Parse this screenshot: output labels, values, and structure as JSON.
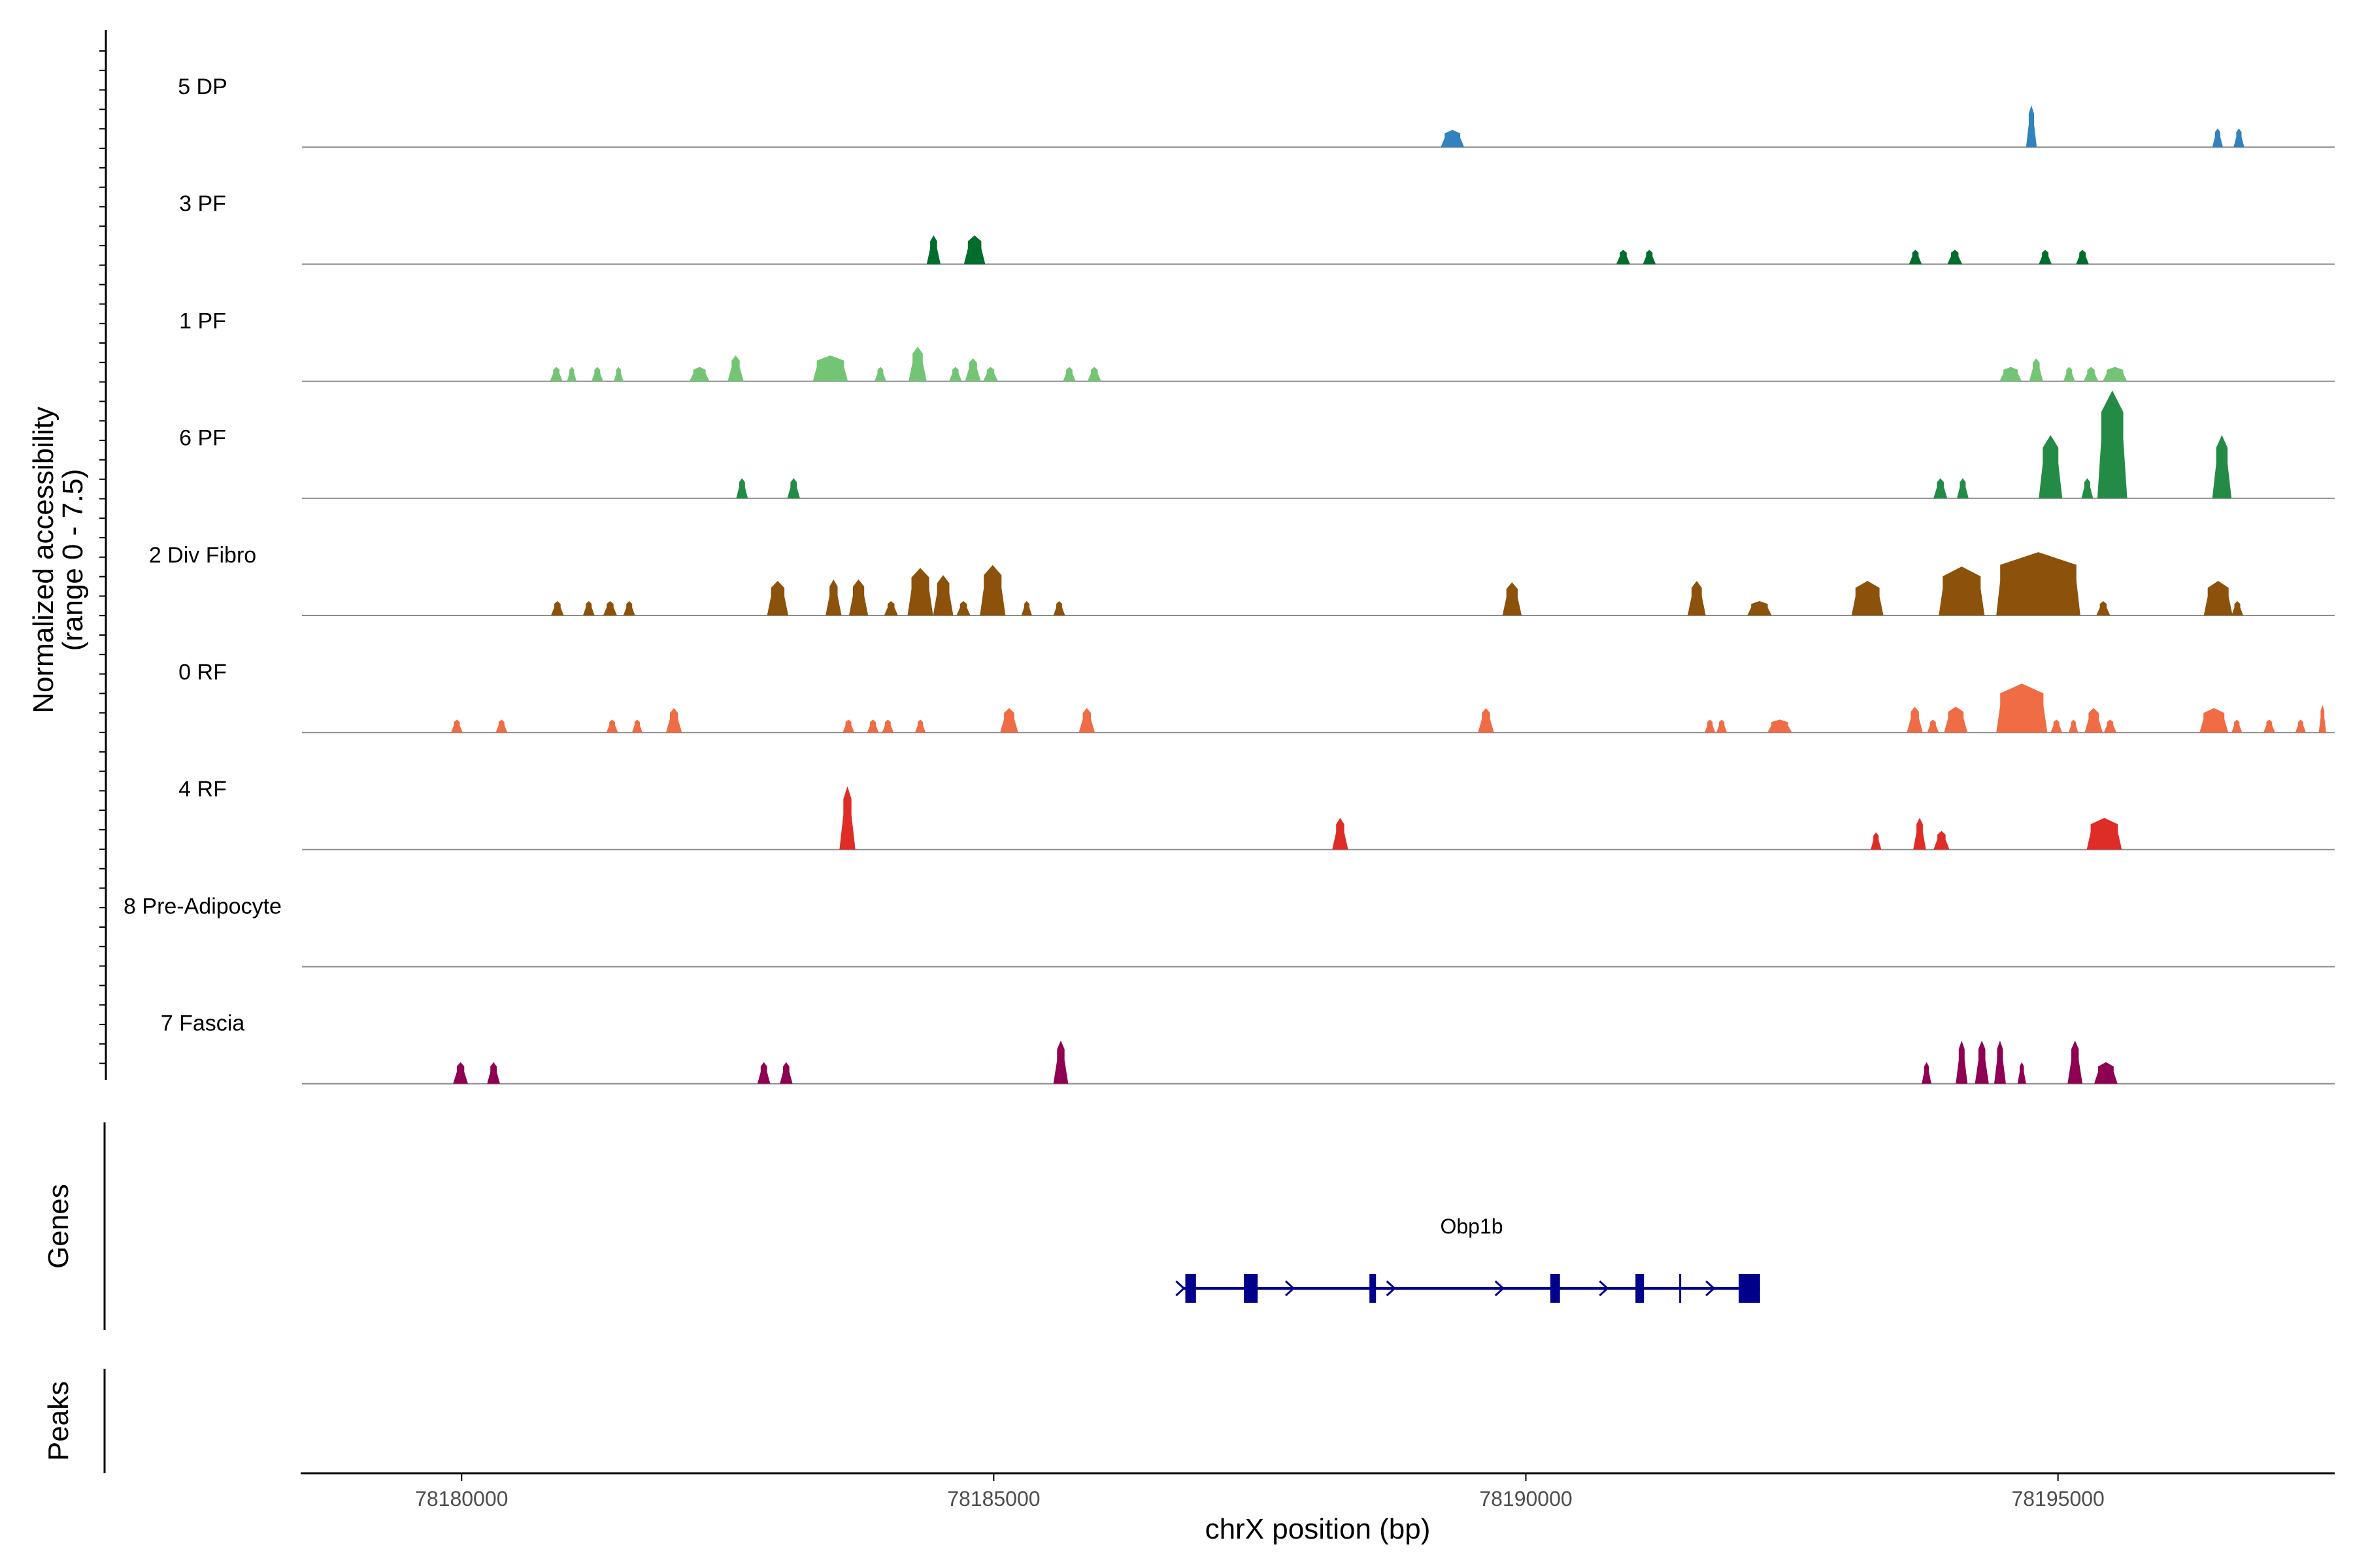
{
  "chart_data": {
    "type": "area",
    "chromosome": "chrX",
    "xlim": [
      78178500,
      78197600
    ],
    "x_ticks": [
      78180000,
      78185000,
      78190000,
      78195000
    ],
    "x_tick_labels": [
      "78180000",
      "78185000",
      "78190000",
      "78195000"
    ],
    "xlabel": "chrX position (bp)",
    "ylabel_line1": "Normalized accessibility",
    "ylabel_line2": "(range 0 - 7.5)",
    "ylim": [
      0,
      7.5
    ],
    "panel_labels": {
      "genes": "Genes",
      "peaks": "Peaks"
    },
    "tracks": [
      {
        "name": "5 DP",
        "color": "#3182bd",
        "peaks": [
          {
            "start": 78189200,
            "end": 78189420,
            "h": 1.2
          },
          {
            "start": 78194700,
            "end": 78194800,
            "h": 2.9
          },
          {
            "start": 78196450,
            "end": 78196550,
            "h": 1.3
          },
          {
            "start": 78196650,
            "end": 78196750,
            "h": 1.3
          }
        ]
      },
      {
        "name": "3 PF",
        "color": "#006d2c",
        "peaks": [
          {
            "start": 78184370,
            "end": 78184500,
            "h": 2.0
          },
          {
            "start": 78184720,
            "end": 78184920,
            "h": 2.0
          },
          {
            "start": 78190850,
            "end": 78190980,
            "h": 1.0
          },
          {
            "start": 78191100,
            "end": 78191220,
            "h": 1.0
          },
          {
            "start": 78193600,
            "end": 78193720,
            "h": 1.0
          },
          {
            "start": 78193960,
            "end": 78194100,
            "h": 1.0
          },
          {
            "start": 78194820,
            "end": 78194940,
            "h": 1.0
          },
          {
            "start": 78195170,
            "end": 78195290,
            "h": 1.0
          }
        ]
      },
      {
        "name": "1 PF",
        "color": "#74c476",
        "peaks": [
          {
            "start": 78180830,
            "end": 78180950,
            "h": 1.0
          },
          {
            "start": 78180990,
            "end": 78181080,
            "h": 1.0
          },
          {
            "start": 78181220,
            "end": 78181330,
            "h": 1.0
          },
          {
            "start": 78181430,
            "end": 78181520,
            "h": 1.0
          },
          {
            "start": 78182140,
            "end": 78182330,
            "h": 1.0
          },
          {
            "start": 78182500,
            "end": 78182650,
            "h": 1.8
          },
          {
            "start": 78183300,
            "end": 78183630,
            "h": 1.8
          },
          {
            "start": 78183880,
            "end": 78183990,
            "h": 1.0
          },
          {
            "start": 78184200,
            "end": 78184370,
            "h": 2.4
          },
          {
            "start": 78184580,
            "end": 78184700,
            "h": 1.0
          },
          {
            "start": 78184730,
            "end": 78184880,
            "h": 1.6
          },
          {
            "start": 78184900,
            "end": 78185040,
            "h": 1.0
          },
          {
            "start": 78185650,
            "end": 78185770,
            "h": 1.0
          },
          {
            "start": 78185880,
            "end": 78186010,
            "h": 1.0
          },
          {
            "start": 78194450,
            "end": 78194660,
            "h": 1.0
          },
          {
            "start": 78194730,
            "end": 78194860,
            "h": 1.6
          },
          {
            "start": 78195050,
            "end": 78195160,
            "h": 1.0
          },
          {
            "start": 78195240,
            "end": 78195380,
            "h": 1.0
          },
          {
            "start": 78195420,
            "end": 78195650,
            "h": 1.0
          }
        ]
      },
      {
        "name": "6 PF",
        "color": "#238b45",
        "peaks": [
          {
            "start": 78182580,
            "end": 78182690,
            "h": 1.4
          },
          {
            "start": 78183060,
            "end": 78183180,
            "h": 1.4
          },
          {
            "start": 78193830,
            "end": 78193960,
            "h": 1.4
          },
          {
            "start": 78194050,
            "end": 78194160,
            "h": 1.4
          },
          {
            "start": 78194820,
            "end": 78195040,
            "h": 4.4
          },
          {
            "start": 78195220,
            "end": 78195330,
            "h": 1.4
          },
          {
            "start": 78195370,
            "end": 78195650,
            "h": 7.5
          },
          {
            "start": 78196450,
            "end": 78196630,
            "h": 4.4
          }
        ]
      },
      {
        "name": "2 Div Fibro",
        "color": "#8c510a",
        "peaks": [
          {
            "start": 78180840,
            "end": 78180960,
            "h": 1.0
          },
          {
            "start": 78181140,
            "end": 78181250,
            "h": 1.0
          },
          {
            "start": 78181330,
            "end": 78181460,
            "h": 1.0
          },
          {
            "start": 78181520,
            "end": 78181630,
            "h": 1.0
          },
          {
            "start": 78182870,
            "end": 78183070,
            "h": 2.4
          },
          {
            "start": 78183420,
            "end": 78183570,
            "h": 2.5
          },
          {
            "start": 78183640,
            "end": 78183820,
            "h": 2.5
          },
          {
            "start": 78183970,
            "end": 78184100,
            "h": 1.0
          },
          {
            "start": 78184190,
            "end": 78184430,
            "h": 3.3
          },
          {
            "start": 78184430,
            "end": 78184620,
            "h": 2.8
          },
          {
            "start": 78184650,
            "end": 78184780,
            "h": 1.0
          },
          {
            "start": 78184870,
            "end": 78185110,
            "h": 3.5
          },
          {
            "start": 78185260,
            "end": 78185360,
            "h": 1.0
          },
          {
            "start": 78185560,
            "end": 78185670,
            "h": 1.0
          },
          {
            "start": 78189780,
            "end": 78189960,
            "h": 2.3
          },
          {
            "start": 78191520,
            "end": 78191690,
            "h": 2.4
          },
          {
            "start": 78192080,
            "end": 78192310,
            "h": 1.0
          },
          {
            "start": 78193060,
            "end": 78193360,
            "h": 2.4
          },
          {
            "start": 78193880,
            "end": 78194310,
            "h": 3.4
          },
          {
            "start": 78194420,
            "end": 78195210,
            "h": 4.4
          },
          {
            "start": 78195360,
            "end": 78195490,
            "h": 1.0
          },
          {
            "start": 78196370,
            "end": 78196640,
            "h": 2.4
          },
          {
            "start": 78196630,
            "end": 78196740,
            "h": 1.0
          }
        ]
      },
      {
        "name": "0 RF",
        "color": "#ef6c45",
        "peaks": [
          {
            "start": 78179900,
            "end": 78180010,
            "h": 0.9
          },
          {
            "start": 78180320,
            "end": 78180430,
            "h": 0.9
          },
          {
            "start": 78181360,
            "end": 78181470,
            "h": 0.9
          },
          {
            "start": 78181600,
            "end": 78181700,
            "h": 0.9
          },
          {
            "start": 78181920,
            "end": 78182070,
            "h": 1.7
          },
          {
            "start": 78183580,
            "end": 78183690,
            "h": 0.9
          },
          {
            "start": 78183810,
            "end": 78183920,
            "h": 0.9
          },
          {
            "start": 78183950,
            "end": 78184060,
            "h": 0.9
          },
          {
            "start": 78184260,
            "end": 78184360,
            "h": 0.9
          },
          {
            "start": 78185060,
            "end": 78185230,
            "h": 1.7
          },
          {
            "start": 78185800,
            "end": 78185950,
            "h": 1.7
          },
          {
            "start": 78189550,
            "end": 78189700,
            "h": 1.7
          },
          {
            "start": 78191680,
            "end": 78191780,
            "h": 0.9
          },
          {
            "start": 78191790,
            "end": 78191890,
            "h": 0.9
          },
          {
            "start": 78192270,
            "end": 78192500,
            "h": 0.9
          },
          {
            "start": 78193580,
            "end": 78193730,
            "h": 1.8
          },
          {
            "start": 78193770,
            "end": 78193880,
            "h": 0.9
          },
          {
            "start": 78193930,
            "end": 78194150,
            "h": 1.8
          },
          {
            "start": 78194420,
            "end": 78194900,
            "h": 3.4
          },
          {
            "start": 78194930,
            "end": 78195040,
            "h": 0.9
          },
          {
            "start": 78195100,
            "end": 78195190,
            "h": 0.9
          },
          {
            "start": 78195250,
            "end": 78195420,
            "h": 1.7
          },
          {
            "start": 78195430,
            "end": 78195550,
            "h": 0.9
          },
          {
            "start": 78196330,
            "end": 78196600,
            "h": 1.7
          },
          {
            "start": 78196630,
            "end": 78196730,
            "h": 0.9
          },
          {
            "start": 78196930,
            "end": 78197040,
            "h": 0.9
          },
          {
            "start": 78197230,
            "end": 78197330,
            "h": 0.9
          },
          {
            "start": 78197450,
            "end": 78197520,
            "h": 1.9
          }
        ]
      },
      {
        "name": "4 RF",
        "color": "#de2d26",
        "peaks": [
          {
            "start": 78183550,
            "end": 78183700,
            "h": 4.4
          },
          {
            "start": 78188180,
            "end": 78188330,
            "h": 2.2
          },
          {
            "start": 78193240,
            "end": 78193340,
            "h": 1.2
          },
          {
            "start": 78193640,
            "end": 78193760,
            "h": 2.2
          },
          {
            "start": 78193830,
            "end": 78193980,
            "h": 1.3
          },
          {
            "start": 78195270,
            "end": 78195600,
            "h": 2.2
          }
        ]
      },
      {
        "name": "8 Pre-Adipocyte",
        "color": "#999999",
        "peaks": []
      },
      {
        "name": "7 Fascia",
        "color": "#8e0152",
        "peaks": [
          {
            "start": 78179920,
            "end": 78180060,
            "h": 1.5
          },
          {
            "start": 78180240,
            "end": 78180360,
            "h": 1.5
          },
          {
            "start": 78182780,
            "end": 78182900,
            "h": 1.5
          },
          {
            "start": 78182990,
            "end": 78183110,
            "h": 1.5
          },
          {
            "start": 78185560,
            "end": 78185700,
            "h": 3.0
          },
          {
            "start": 78193720,
            "end": 78193810,
            "h": 1.5
          },
          {
            "start": 78194040,
            "end": 78194150,
            "h": 3.0
          },
          {
            "start": 78194220,
            "end": 78194350,
            "h": 3.0
          },
          {
            "start": 78194400,
            "end": 78194510,
            "h": 3.0
          },
          {
            "start": 78194620,
            "end": 78194700,
            "h": 1.5
          },
          {
            "start": 78195090,
            "end": 78195230,
            "h": 3.0
          },
          {
            "start": 78195340,
            "end": 78195560,
            "h": 1.5
          }
        ]
      }
    ],
    "gene": {
      "name": "Obp1b",
      "color": "#00008b",
      "start": 78186780,
      "end": 78192200,
      "exons": [
        {
          "start": 78186800,
          "end": 78186900
        },
        {
          "start": 78187350,
          "end": 78187480
        },
        {
          "start": 78188530,
          "end": 78188590
        },
        {
          "start": 78190230,
          "end": 78190320
        },
        {
          "start": 78191030,
          "end": 78191110
        },
        {
          "start": 78192000,
          "end": 78192200
        }
      ],
      "tick_mark": 78191450,
      "strand_arrows": [
        78186750,
        78187780,
        78188730,
        78189750,
        78190730,
        78191730
      ]
    }
  }
}
